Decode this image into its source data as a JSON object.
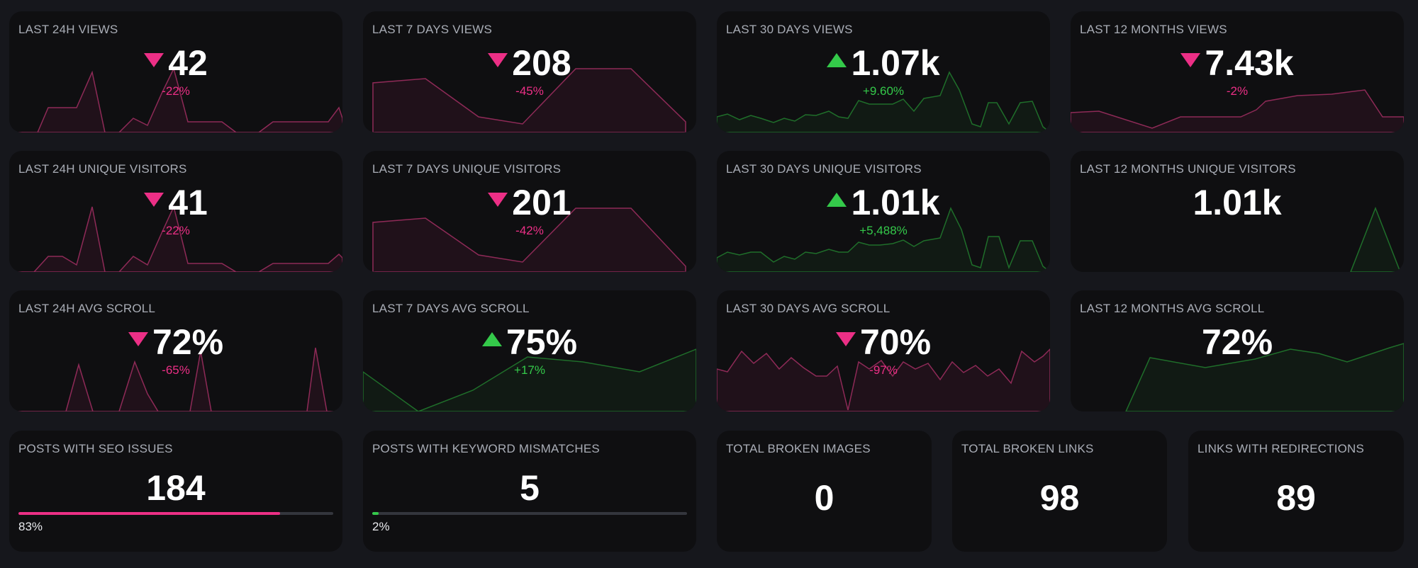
{
  "colors": {
    "background": "#16171c",
    "card": "#0f0f11",
    "label": "#a9adb6",
    "negative": "#ec2f86",
    "positive": "#34c94a"
  },
  "cards": {
    "views_24h": {
      "title": "LAST 24H VIEWS",
      "value": "42",
      "delta": "-22%",
      "trend": "down"
    },
    "views_7d": {
      "title": "LAST 7 DAYS VIEWS",
      "value": "208",
      "delta": "-45%",
      "trend": "down"
    },
    "views_30d": {
      "title": "LAST 30 DAYS VIEWS",
      "value": "1.07k",
      "delta": "+9.60%",
      "trend": "up"
    },
    "views_12m": {
      "title": "LAST 12 MONTHS VIEWS",
      "value": "7.43k",
      "delta": "-2%",
      "trend": "down"
    },
    "visitors_24h": {
      "title": "LAST 24H UNIQUE VISITORS",
      "value": "41",
      "delta": "-22%",
      "trend": "down"
    },
    "visitors_7d": {
      "title": "LAST 7 DAYS UNIQUE VISITORS",
      "value": "201",
      "delta": "-42%",
      "trend": "down"
    },
    "visitors_30d": {
      "title": "LAST 30 DAYS UNIQUE VISITORS",
      "value": "1.01k",
      "delta": "+5,488%",
      "trend": "up"
    },
    "visitors_12m": {
      "title": "LAST 12 MONTHS UNIQUE VISITORS",
      "value": "1.01k",
      "delta": "",
      "trend": "none"
    },
    "scroll_24h": {
      "title": "LAST 24H AVG SCROLL",
      "value": "72%",
      "delta": "-65%",
      "trend": "down"
    },
    "scroll_7d": {
      "title": "LAST 7 DAYS AVG SCROLL",
      "value": "75%",
      "delta": "+17%",
      "trend": "up"
    },
    "scroll_30d": {
      "title": "LAST 30 DAYS AVG SCROLL",
      "value": "70%",
      "delta": "-97%",
      "trend": "down"
    },
    "scroll_12m": {
      "title": "LAST 12 MONTHS AVG SCROLL",
      "value": "72%",
      "delta": "",
      "trend": "none"
    }
  },
  "stats": {
    "seo_issues": {
      "title": "POSTS WITH SEO ISSUES",
      "value": "184",
      "percent_label": "83%",
      "fraction": 0.83
    },
    "keyword_mismatch": {
      "title": "POSTS WITH KEYWORD MISMATCHES",
      "value": "5",
      "percent_label": "2%",
      "fraction": 0.02
    },
    "broken_images": {
      "title": "TOTAL BROKEN IMAGES",
      "value": "0"
    },
    "broken_links": {
      "title": "TOTAL BROKEN LINKS",
      "value": "98"
    },
    "redirections": {
      "title": "LINKS WITH REDIRECTIONS",
      "value": "89"
    }
  }
}
